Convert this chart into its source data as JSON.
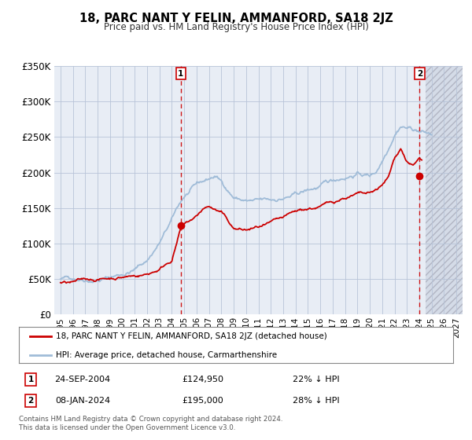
{
  "title": "18, PARC NANT Y FELIN, AMMANFORD, SA18 2JZ",
  "subtitle": "Price paid vs. HM Land Registry's House Price Index (HPI)",
  "plot_bg_color": "#e8edf5",
  "future_bg_color": "#d8dde8",
  "legend_line1": "18, PARC NANT Y FELIN, AMMANFORD, SA18 2JZ (detached house)",
  "legend_line2": "HPI: Average price, detached house, Carmarthenshire",
  "annotation1": {
    "label": "1",
    "date": "24-SEP-2004",
    "price": "£124,950",
    "pct": "22% ↓ HPI"
  },
  "annotation2": {
    "label": "2",
    "date": "08-JAN-2024",
    "price": "£195,000",
    "pct": "28% ↓ HPI"
  },
  "footer1": "Contains HM Land Registry data © Crown copyright and database right 2024.",
  "footer2": "This data is licensed under the Open Government Licence v3.0.",
  "hpi_color": "#a0bcd8",
  "price_color": "#cc0000",
  "marker_color": "#cc0000",
  "vline_color": "#cc0000",
  "xlabel_years": [
    1995,
    1996,
    1997,
    1998,
    1999,
    2000,
    2001,
    2002,
    2003,
    2004,
    2005,
    2006,
    2007,
    2008,
    2009,
    2010,
    2011,
    2012,
    2013,
    2014,
    2015,
    2016,
    2017,
    2018,
    2019,
    2020,
    2021,
    2022,
    2023,
    2024,
    2025,
    2026,
    2027
  ],
  "ylim": [
    0,
    350000
  ],
  "yticks": [
    0,
    50000,
    100000,
    150000,
    200000,
    250000,
    300000,
    350000
  ],
  "ytick_labels": [
    "£0",
    "£50K",
    "£100K",
    "£150K",
    "£200K",
    "£250K",
    "£300K",
    "£350K"
  ],
  "xmin": 1994.5,
  "xmax": 2027.5,
  "future_start": 2024.5,
  "marker1_x": 2004.73,
  "marker1_y": 124950,
  "marker2_x": 2024.03,
  "marker2_y": 195000
}
